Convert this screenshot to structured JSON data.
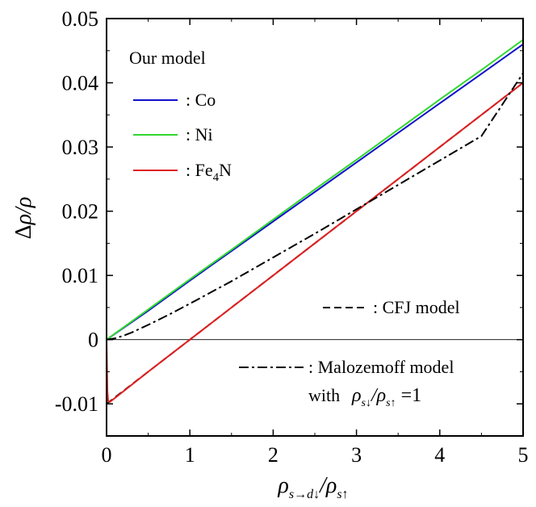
{
  "chart_data": {
    "type": "line",
    "title": "",
    "xlabel": "ρ_{s→d↓}/ρ_{s↑}",
    "ylabel": "Δρ/ρ",
    "xlim": [
      0,
      5
    ],
    "ylim": [
      -0.015,
      0.05
    ],
    "x_ticks": [
      "0",
      "1",
      "2",
      "3",
      "4",
      "5"
    ],
    "y_ticks": [
      "-0.01",
      "0",
      "0.01",
      "0.02",
      "0.03",
      "0.04",
      "0.05"
    ],
    "legend_heading": "Our model",
    "series": [
      {
        "name": "Co",
        "legend": ":  Co",
        "color": "#1010c8",
        "style": "solid",
        "x": [
          0,
          0.5,
          1,
          1.5,
          2,
          2.5,
          3,
          3.5,
          4,
          4.5,
          5
        ],
        "y": [
          0,
          0.0045,
          0.0092,
          0.0138,
          0.0184,
          0.023,
          0.0276,
          0.0322,
          0.0368,
          0.0414,
          0.046
        ]
      },
      {
        "name": "Ni",
        "legend": ":  Ni",
        "color": "#30d830",
        "style": "solid",
        "x": [
          0,
          0.5,
          1,
          1.5,
          2,
          2.5,
          3,
          3.5,
          4,
          4.5,
          5
        ],
        "y": [
          0,
          0.0047,
          0.0094,
          0.014,
          0.0187,
          0.0234,
          0.028,
          0.0327,
          0.0374,
          0.042,
          0.0467
        ]
      },
      {
        "name": "Fe4N",
        "legend_prefix": ":  Fe",
        "legend_sub": "4",
        "legend_suffix": "N",
        "color": "#e02020",
        "style": "solid",
        "x": [
          0,
          0.01,
          0.02,
          0.04,
          0.1,
          0.5,
          1,
          2,
          3,
          4,
          5
        ],
        "y": [
          0,
          -0.008,
          -0.0096,
          -0.0097,
          -0.0091,
          -0.005,
          0,
          0.01,
          0.02,
          0.03,
          0.04
        ]
      },
      {
        "name": "CFJ model",
        "legend": ":  CFJ  model",
        "color": "#000000",
        "style": "dashed",
        "x": [
          0,
          1,
          2,
          3,
          4,
          5
        ],
        "y": [
          -0.01,
          0,
          0.01,
          0.02,
          0.03,
          0.04
        ]
      },
      {
        "name": "Malozemoff model",
        "legend": ":  Malozemoff  model",
        "legend_line2": "with",
        "color": "#000000",
        "style": "dashdot",
        "x": [
          0,
          0.1,
          0.2,
          0.3,
          0.4,
          0.5,
          0.75,
          1,
          1.5,
          2,
          2.5,
          3,
          3.5,
          4,
          4.5,
          5
        ],
        "y": [
          0,
          0.0002,
          0.0006,
          0.0011,
          0.0017,
          0.0023,
          0.0039,
          0.0056,
          0.0091,
          0.0128,
          0.0165,
          0.0203,
          0.0241,
          0.0279,
          0.0317,
          0.0415
        ]
      }
    ],
    "annotation_formula": "ρ_{s↓}/ρ_{s↑} = 1"
  }
}
